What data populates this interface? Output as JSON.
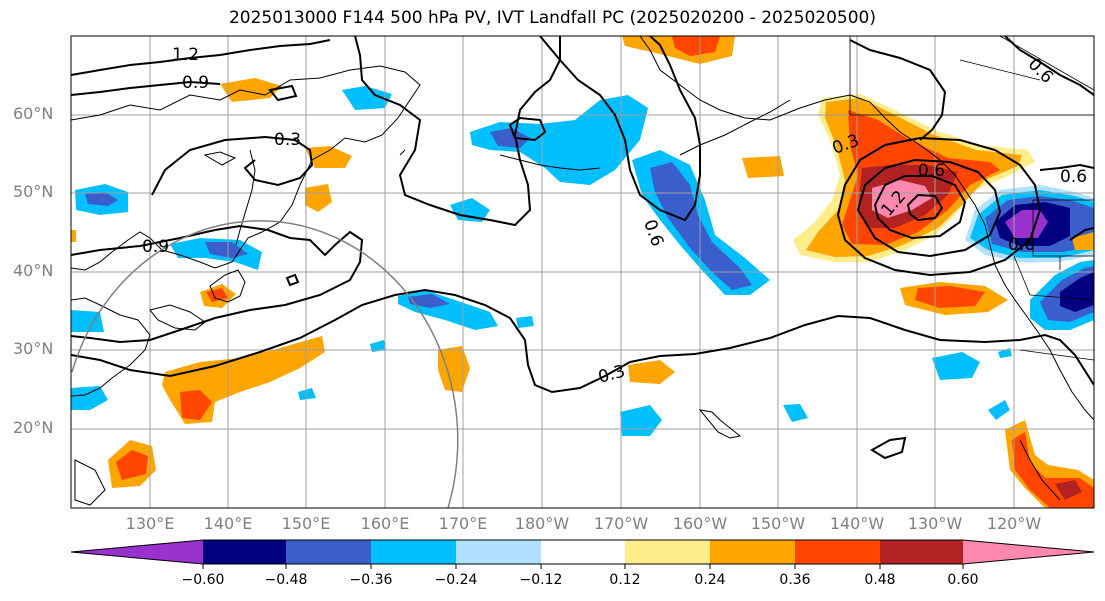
{
  "title": "2025013000 F144 500 hPa PV, IVT Landfall PC (2025020200 - 2025020500)",
  "latitude_labels": [
    "60°N",
    "50°N",
    "40°N",
    "30°N",
    "20°N"
  ],
  "longitude_labels": [
    "130°E",
    "140°E",
    "150°E",
    "160°E",
    "170°E",
    "180°W",
    "170°W",
    "160°W",
    "150°W",
    "140°W",
    "130°W",
    "120°W"
  ],
  "contour_labels": [
    "1.2",
    "0.9",
    "0.3",
    "0.9",
    "0.6",
    "0.3",
    "0.3",
    "0.6",
    "1.2",
    "0.6",
    "0.6",
    "0.6"
  ],
  "colorbar": {
    "tick_labels": [
      "−0.60",
      "−0.48",
      "−0.36",
      "−0.24",
      "−0.12",
      "0.12",
      "0.24",
      "0.36",
      "0.48",
      "0.60"
    ],
    "colors": [
      "#9932cc",
      "#000080",
      "#3a5fcd",
      "#00bfff",
      "#b0e2ff",
      "#ffffff",
      "#ffec8b",
      "#ffa500",
      "#ff4500",
      "#b22222",
      "#ff88b0"
    ]
  },
  "shading_colors": {
    "neg_strong": "#3a5fcd",
    "neg_mid": "#00bfff",
    "neg_light": "#b0e2ff",
    "neg_darkest": "#000080",
    "neg_purple": "#9932cc",
    "pos_light": "#ffec8b",
    "pos_mid": "#ffa500",
    "pos_strong": "#ff4500",
    "pos_dark": "#b22222",
    "pos_pink": "#ff88b0"
  }
}
